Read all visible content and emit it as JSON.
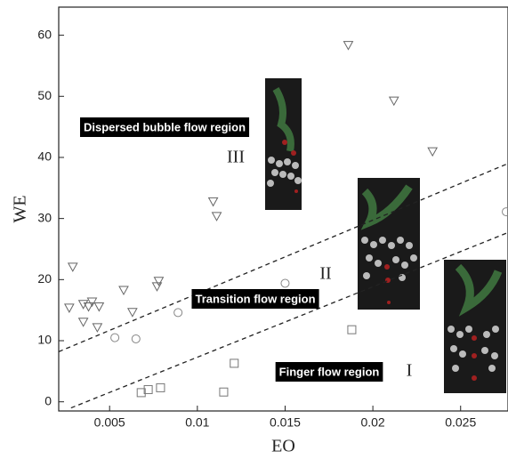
{
  "chart_data": {
    "type": "scatter",
    "x_label": "EO",
    "y_label": "WE",
    "xlim": [
      0.0021,
      0.0277
    ],
    "ylim": [
      -1.5,
      64.6
    ],
    "xticks": [
      0.005,
      0.01,
      0.015,
      0.02,
      0.025
    ],
    "yticks": [
      0,
      10,
      20,
      30,
      40,
      50,
      60
    ],
    "series": [
      {
        "marker": "triangle",
        "color": "#666666",
        "x": [
          0.0029,
          0.0027,
          0.0035,
          0.0035,
          0.0038,
          0.004,
          0.0044,
          0.0043,
          0.0058,
          0.0063,
          0.0078,
          0.0077,
          0.0109,
          0.0111,
          0.0186,
          0.0212,
          0.0234
        ],
        "values": [
          22.1,
          15.4,
          16.0,
          13.1,
          15.6,
          16.4,
          15.6,
          12.2,
          18.3,
          14.7,
          19.8,
          18.9,
          32.8,
          30.4,
          58.4,
          49.3,
          41.0
        ]
      },
      {
        "marker": "circle",
        "color": "#888888",
        "x": [
          0.0053,
          0.0065,
          0.0089,
          0.015,
          0.0276
        ],
        "values": [
          10.5,
          10.3,
          14.6,
          19.4,
          31.1
        ]
      },
      {
        "marker": "square",
        "color": "#777777",
        "x": [
          0.0068,
          0.0072,
          0.0079,
          0.0121,
          0.0115,
          0.0188
        ],
        "values": [
          1.5,
          2.0,
          2.3,
          6.3,
          1.6,
          11.8
        ]
      }
    ],
    "boundaries": [
      {
        "x": [
          0.0021,
          0.0277
        ],
        "values": [
          8.2,
          39.0
        ]
      },
      {
        "x": [
          0.0028,
          0.0277
        ],
        "values": [
          -1.0,
          27.7
        ]
      }
    ],
    "annotations": [
      {
        "text": "Dispersed bubble flow region",
        "numeral": "III"
      },
      {
        "text": "Transition flow region",
        "numeral": "II"
      },
      {
        "text": "Finger flow region",
        "numeral": "I"
      }
    ]
  }
}
